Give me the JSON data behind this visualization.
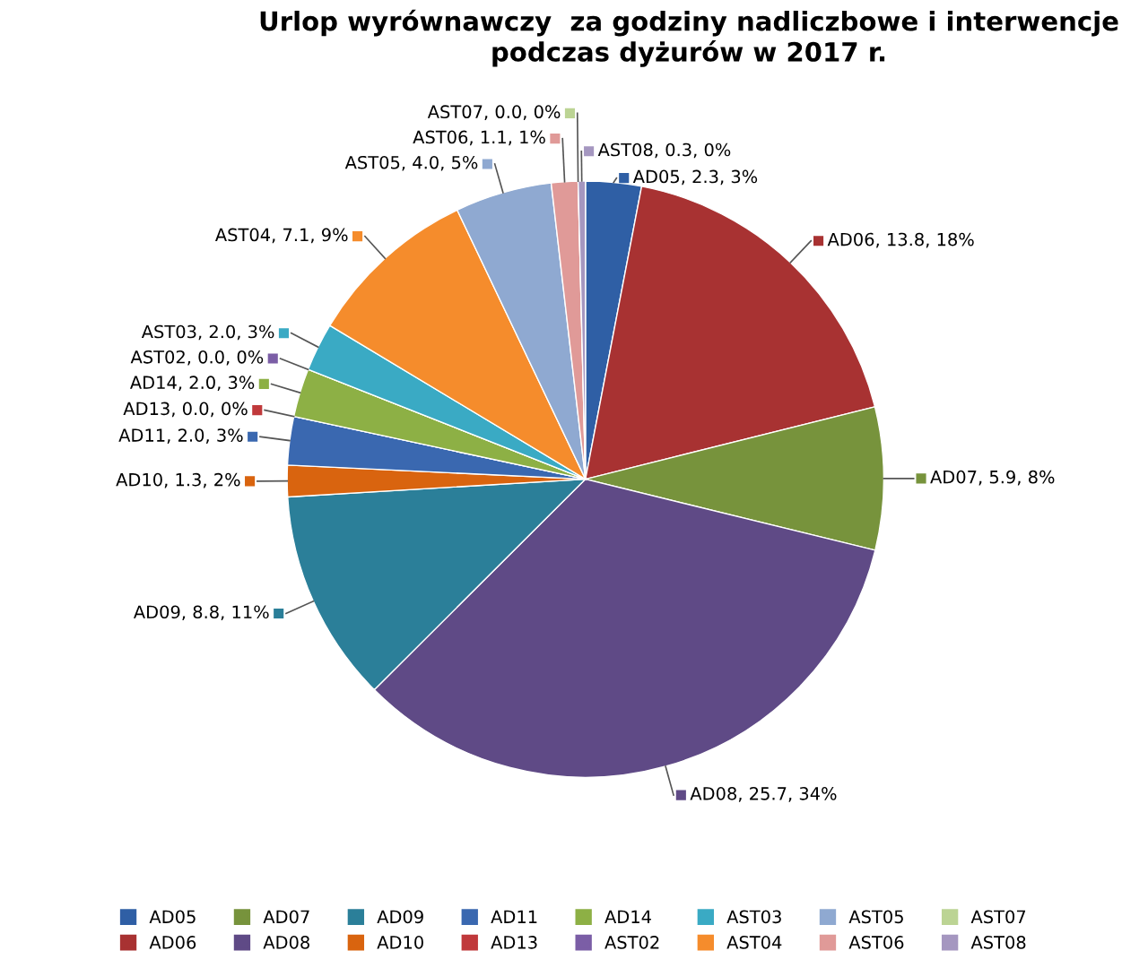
{
  "chart_data": {
    "type": "pie",
    "title": "Urlop wyrównawczy  za godziny nadliczbowe i interwencje\npodczas dyżurów w 2017 r.",
    "categories": [
      "AD05",
      "AD06",
      "AD07",
      "AD08",
      "AD09",
      "AD10",
      "AD11",
      "AD13",
      "AD14",
      "AST02",
      "AST03",
      "AST04",
      "AST05",
      "AST06",
      "AST07",
      "AST08"
    ],
    "values": [
      2.3,
      13.8,
      5.9,
      25.7,
      8.8,
      1.3,
      2.0,
      0.0,
      2.0,
      0.0,
      2.0,
      7.1,
      4.0,
      1.1,
      0.0,
      0.3
    ],
    "colors": [
      "#2f5fa5",
      "#a83232",
      "#77933c",
      "#5f4a86",
      "#2b7f99",
      "#d9640f",
      "#3a68b0",
      "#c0393b",
      "#8db045",
      "#7b5ea6",
      "#3aaac4",
      "#f58c2c",
      "#8fa9d1",
      "#e09a98",
      "#bcd494",
      "#a597c0"
    ],
    "value_labels": [
      "AD05, 2.3, 3%",
      "AD06, 13.8, 18%",
      "AD07, 5.9, 8%",
      "AD08, 25.7, 34%",
      "AD09, 8.8, 11%",
      "AD10, 1.3, 2%",
      "AD11, 2.0, 3%",
      "AD13, 0.0, 0%",
      "AD14, 2.0, 3%",
      "AST02, 0.0, 0%",
      "AST03, 2.0, 3%",
      "AST04, 7.1, 9%",
      "AST05, 4.0, 5%",
      "AST06, 1.1, 1%",
      "AST07, 0.0, 0%",
      "AST08, 0.3, 0%"
    ],
    "legend": "bottom"
  }
}
